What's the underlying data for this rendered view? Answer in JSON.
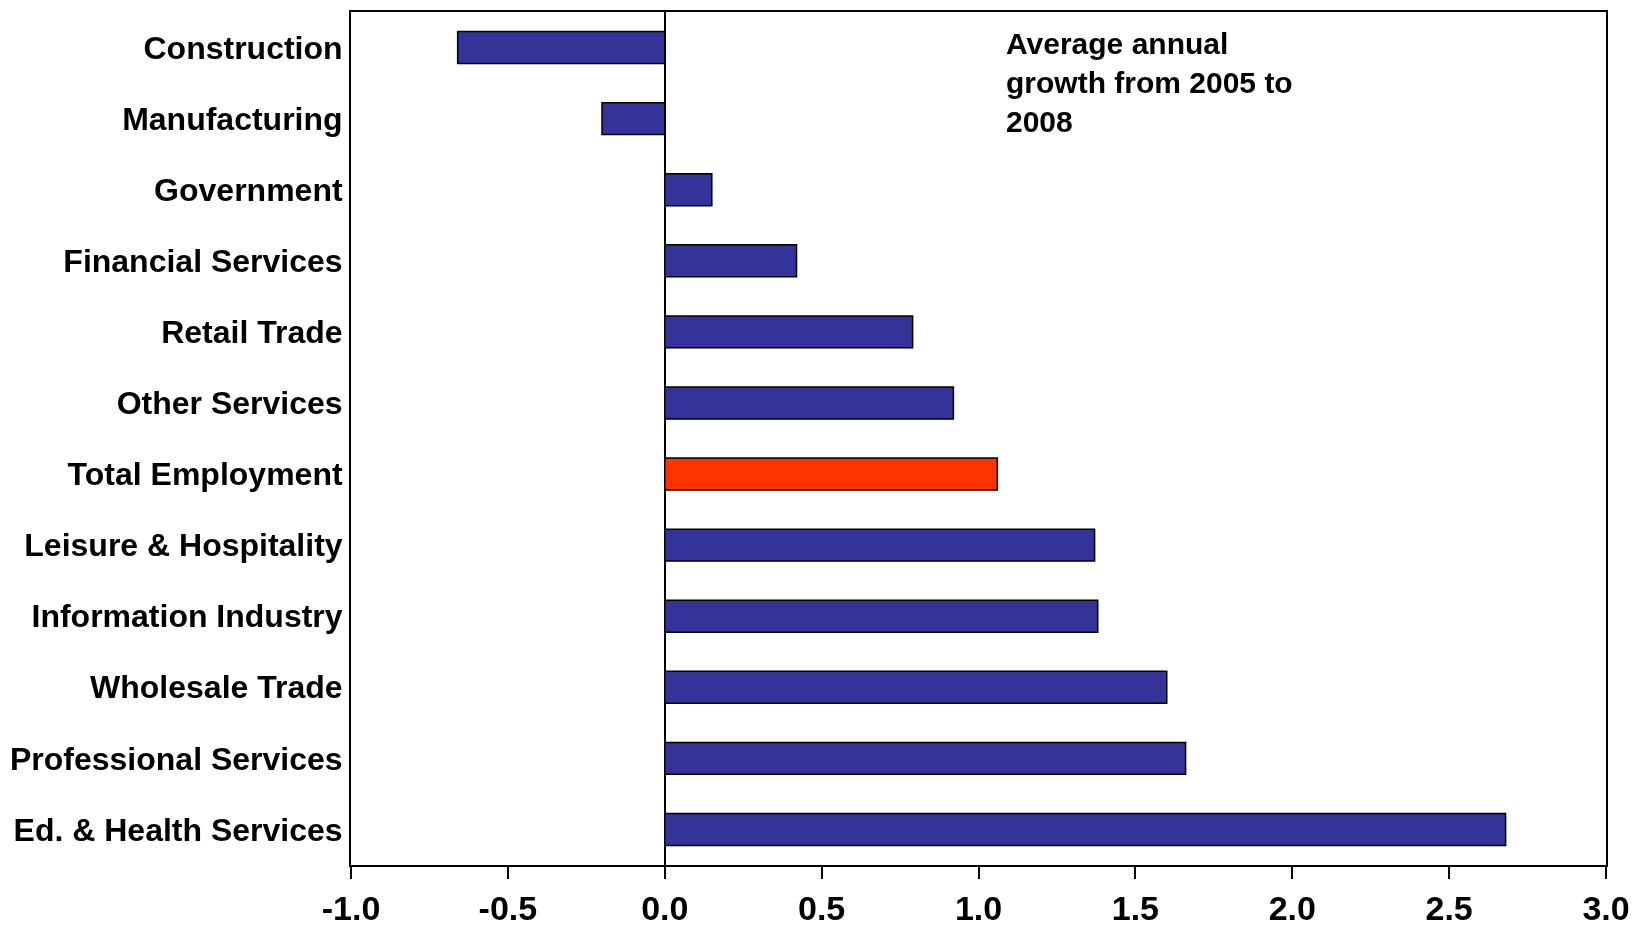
{
  "chart_data": {
    "type": "bar",
    "orientation": "horizontal",
    "categories": [
      "Construction",
      "Manufacturing",
      "Government",
      "Financial Services",
      "Retail Trade",
      "Other Services",
      "Total Employment",
      "Leisure & Hospitality",
      "Information Industry",
      "Wholesale Trade",
      "Professional Services",
      "Ed. & Health Services"
    ],
    "values": [
      -0.66,
      -0.2,
      0.15,
      0.42,
      0.79,
      0.92,
      1.06,
      1.37,
      1.38,
      1.6,
      1.66,
      2.68
    ],
    "colors": [
      "#333399",
      "#333399",
      "#333399",
      "#333399",
      "#333399",
      "#333399",
      "#ff3300",
      "#333399",
      "#333399",
      "#333399",
      "#333399",
      "#333399"
    ],
    "xlim": [
      -1.0,
      3.0
    ],
    "xticks": [
      {
        "value": -1.0,
        "label": "-1.0"
      },
      {
        "value": -0.5,
        "label": "-0.5"
      },
      {
        "value": 0,
        "label": "0.0"
      },
      {
        "value": 0.5,
        "label": "0.5"
      },
      {
        "value": 1.0,
        "label": "1.0"
      },
      {
        "value": 1.5,
        "label": "1.5"
      },
      {
        "value": 2.0,
        "label": "2.0"
      },
      {
        "value": 2.5,
        "label": "2.5"
      },
      {
        "value": 3.0,
        "label": "3.0"
      }
    ],
    "annotations": [
      "Average annual growth from 2005 to 2008"
    ]
  }
}
